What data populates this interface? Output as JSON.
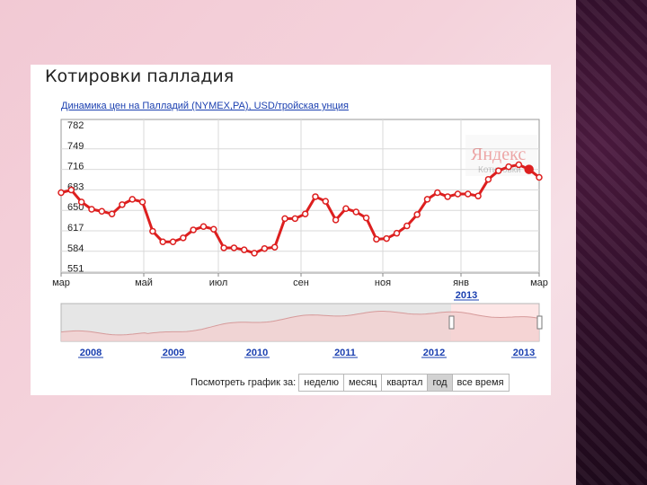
{
  "slide": {
    "title": "Котировки палладия",
    "chart_link": "Динамика цен на Палладий (NYMEX,PA), USD/тройская унция",
    "watermark": "Яндекс",
    "watermark_sub": "Котировки"
  },
  "chart_data": {
    "type": "line",
    "ylim": [
      551,
      782
    ],
    "yticks": [
      782,
      749,
      716,
      683,
      650,
      617,
      584,
      551
    ],
    "x_labels": [
      "мар",
      "май",
      "июл",
      "сен",
      "ноя",
      "янв",
      "мар"
    ],
    "x_sublabel": "2013",
    "grid": true,
    "series": [
      {
        "color": "#dd1f1f",
        "values": [
          680,
          684,
          666,
          655,
          652,
          648,
          662,
          670,
          666,
          622,
          606,
          606,
          612,
          624,
          629,
          625,
          597,
          597,
          594,
          589,
          596,
          598,
          641,
          641,
          648,
          674,
          667,
          639,
          656,
          651,
          642,
          610,
          611,
          619,
          630,
          647,
          670,
          680,
          674,
          678,
          678,
          675,
          700,
          713,
          719,
          722,
          715,
          703
        ]
      }
    ]
  },
  "navigator": {
    "years": [
      "2008",
      "2009",
      "2010",
      "2011",
      "2012",
      "2013"
    ]
  },
  "period_selector": {
    "label": "Посмотреть график за:",
    "options": [
      {
        "label": "неделю",
        "active": false
      },
      {
        "label": "месяц",
        "active": false
      },
      {
        "label": "квартал",
        "active": false
      },
      {
        "label": "год",
        "active": true
      },
      {
        "label": "все время",
        "active": false
      }
    ]
  }
}
